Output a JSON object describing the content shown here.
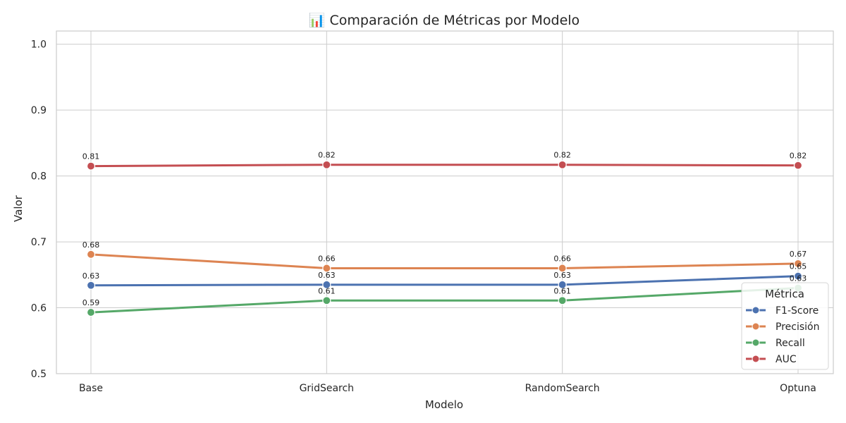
{
  "chart_data": {
    "type": "line",
    "title": "📊 Comparación de Métricas por Modelo",
    "xlabel": "Modelo",
    "ylabel": "Valor",
    "categories": [
      "Base",
      "GridSearch",
      "RandomSearch",
      "Optuna"
    ],
    "ylim": [
      0.5,
      1.02
    ],
    "yticks": [
      "0.5",
      "0.6",
      "0.7",
      "0.8",
      "0.9",
      "1.0"
    ],
    "grid": true,
    "legend": {
      "title": "Métrica",
      "placement": "lower-right"
    },
    "series": [
      {
        "name": "F1-Score",
        "color": "#4c72b0",
        "values": [
          0.634,
          0.635,
          0.635,
          0.648
        ],
        "labels": [
          "0.63",
          "0.63",
          "0.63",
          "0.65"
        ]
      },
      {
        "name": "Precisión",
        "color": "#dd8452",
        "values": [
          0.681,
          0.66,
          0.66,
          0.667
        ],
        "labels": [
          "0.68",
          "0.66",
          "0.66",
          "0.67"
        ]
      },
      {
        "name": "Recall",
        "color": "#55a868",
        "values": [
          0.593,
          0.611,
          0.611,
          0.63
        ],
        "labels": [
          "0.59",
          "0.61",
          "0.61",
          "0.63"
        ]
      },
      {
        "name": "AUC",
        "color": "#c44e52",
        "values": [
          0.815,
          0.817,
          0.817,
          0.816
        ],
        "labels": [
          "0.81",
          "0.82",
          "0.82",
          "0.82"
        ]
      }
    ]
  }
}
